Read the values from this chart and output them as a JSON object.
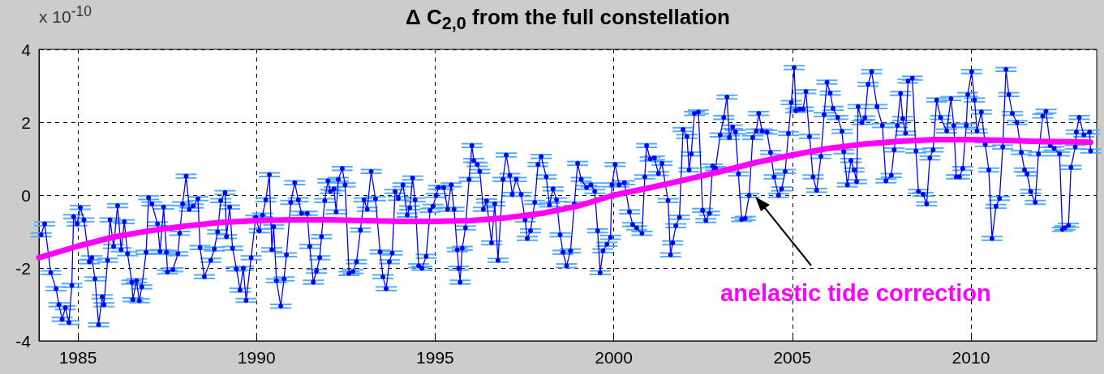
{
  "chart_data": {
    "type": "line",
    "title": "Δ C$_{2,0}$ from the full constellation",
    "annotations": [
      "x 10$^{-10}$"
    ],
    "xlim": [
      1983.91,
      2013.52
    ],
    "xticks": [
      1985,
      1990,
      1995,
      2000,
      2005,
      2010
    ],
    "ylim": [
      -4,
      4
    ],
    "yticks": [
      -4,
      -2,
      0,
      2,
      4
    ],
    "grid": true,
    "legend": false,
    "line_style": "solid",
    "series": [
      {
        "color": "#0000ff",
        "marker": "circle",
        "x": [
          1983.97,
          1984.07,
          1984.24,
          1984.39,
          1984.47,
          1984.56,
          1984.65,
          1984.75,
          1984.83,
          1984.88,
          1984.98,
          1985.07,
          1985.17,
          1985.32,
          1985.39,
          1985.48,
          1985.58,
          1985.68,
          1985.73,
          1985.83,
          1985.9,
          1986,
          1986.11,
          1986.21,
          1986.3,
          1986.39,
          1986.51,
          1986.54,
          1986.64,
          1986.72,
          1986.79,
          1986.91,
          1986.98,
          1987.07,
          1987.23,
          1987.3,
          1987.4,
          1987.48,
          1987.51,
          1987.66,
          1987.8,
          1987.85,
          1987.93,
          1988.03,
          1988.12,
          1988.23,
          1988.36,
          1988.42,
          1988.54,
          1988.72,
          1988.82,
          1988.91,
          1989,
          1989.12,
          1989.16,
          1989.25,
          1989.33,
          1989.44,
          1989.54,
          1989.63,
          1989.71,
          1989.85,
          1989.98,
          1990.08,
          1990.17,
          1990.26,
          1990.36,
          1990.43,
          1990.48,
          1990.56,
          1990.68,
          1990.77,
          1990.84,
          1990.96,
          1991.07,
          1991.17,
          1991.26,
          1991.42,
          1991.49,
          1991.59,
          1991.68,
          1991.77,
          1991.82,
          1991.91,
          1992,
          1992.07,
          1992.17,
          1992.23,
          1992.29,
          1992.4,
          1992.48,
          1992.59,
          1992.7,
          1992.8,
          1992.91,
          1993.01,
          1993.1,
          1993.21,
          1993.33,
          1993.46,
          1993.54,
          1993.63,
          1993.72,
          1993.8,
          1993.88,
          1993.97,
          1994.1,
          1994.22,
          1994.29,
          1994.37,
          1994.44,
          1994.54,
          1994.63,
          1994.75,
          1994.86,
          1994.94,
          1995.03,
          1995.09,
          1995.24,
          1995.35,
          1995.45,
          1995.53,
          1995.62,
          1995.66,
          1995.7,
          1995.76,
          1995.85,
          1995.95,
          1996.03,
          1996.08,
          1996.18,
          1996.25,
          1996.35,
          1996.44,
          1996.58,
          1996.67,
          1996.76,
          1996.9,
          1996.99,
          1997.09,
          1997.16,
          1997.27,
          1997.41,
          1997.52,
          1997.58,
          1997.67,
          1997.79,
          1997.88,
          1997.97,
          1998.11,
          1998.2,
          1998.3,
          1998.4,
          1998.5,
          1998.58,
          1998.68,
          1998.79,
          1998.9,
          1998.99,
          1999.09,
          1999.24,
          1999.36,
          1999.47,
          1999.55,
          1999.62,
          1999.7,
          1999.81,
          1999.91,
          1999.95,
          2000.04,
          2000.15,
          2000.3,
          2000.44,
          2000.53,
          2000.64,
          2000.79,
          2000.87,
          2000.92,
          2001.02,
          2001.14,
          2001.25,
          2001.35,
          2001.52,
          2001.59,
          2001.65,
          2001.74,
          2001.84,
          2001.94,
          2002.05,
          2002.11,
          2002.17,
          2002.26,
          2002.37,
          2002.49,
          2002.58,
          2002.68,
          2002.77,
          2002.85,
          2002.98,
          2003.08,
          2003.17,
          2003.24,
          2003.33,
          2003.41,
          2003.49,
          2003.58,
          2003.68,
          2003.79,
          2003.89,
          2003.99,
          2004.06,
          2004.15,
          2004.29,
          2004.39,
          2004.49,
          2004.61,
          2004.7,
          2004.8,
          2004.89,
          2004.97,
          2005.05,
          2005.1,
          2005.2,
          2005.3,
          2005.38,
          2005.48,
          2005.58,
          2005.68,
          2005.8,
          2005.89,
          2005.97,
          2006.06,
          2006.14,
          2006.27,
          2006.39,
          2006.44,
          2006.54,
          2006.64,
          2006.73,
          2006.8,
          2006.84,
          2006.95,
          2007.03,
          2007.12,
          2007.22,
          2007.37,
          2007.52,
          2007.62,
          2007.77,
          2007.85,
          2007.94,
          2008.03,
          2008.09,
          2008.17,
          2008.24,
          2008.36,
          2008.46,
          2008.53,
          2008.66,
          2008.76,
          2008.85,
          2008.94,
          2009.04,
          2009.15,
          2009.32,
          2009.44,
          2009.52,
          2009.59,
          2009.68,
          2009.77,
          2009.87,
          2009.91,
          2010.02,
          2010.1,
          2010.17,
          2010.29,
          2010.4,
          2010.5,
          2010.59,
          2010.7,
          2010.8,
          2010.89,
          2010.98,
          2011.06,
          2011.16,
          2011.29,
          2011.41,
          2011.5,
          2011.57,
          2011.67,
          2011.8,
          2011.89,
          2012.01,
          2012.1,
          2012.22,
          2012.33,
          2012.48,
          2012.56,
          2012.63,
          2012.73,
          2012.8,
          2012.92,
          2012.95,
          2013.03,
          2013.16,
          2013.32,
          2013.35
        ],
        "values": [
          -1.09,
          -0.79,
          -2.13,
          -2.57,
          -3.01,
          -3.41,
          -3.09,
          -3.5,
          -2.48,
          -0.59,
          -0.79,
          -0.34,
          -0.68,
          -1.83,
          -1.72,
          -2.3,
          -3.56,
          -2.79,
          -3.01,
          -1.79,
          -0.68,
          -1.41,
          -0.29,
          -1.5,
          -0.73,
          -1.61,
          -2.39,
          -2.87,
          -2.35,
          -2.9,
          -2.52,
          -1.57,
          -0.07,
          -0.24,
          -0.79,
          -1.55,
          -0.33,
          -1.57,
          -2.11,
          -2.05,
          -1.61,
          -1.05,
          -0.24,
          0.52,
          -0.39,
          -0.3,
          -0.1,
          -1.44,
          -2.24,
          -1.79,
          -1.48,
          -1.01,
          -0.15,
          0.07,
          -1.14,
          -0.33,
          -1.46,
          -2.03,
          -2.61,
          -2.01,
          -2.89,
          -1.72,
          -0.61,
          -0.98,
          -0.55,
          -0.13,
          0.56,
          -1.5,
          -0.87,
          -2.35,
          -3.05,
          -2.3,
          -1.64,
          -0.2,
          0.34,
          -0.13,
          -0.5,
          -0.5,
          -1.41,
          -2.39,
          -2.09,
          -1.72,
          -1.14,
          -0.15,
          0.39,
          0.1,
          0.17,
          -0.46,
          0.43,
          0.73,
          0.28,
          -2.15,
          -2.1,
          -1.83,
          -0.96,
          -0.13,
          -0.39,
          0.65,
          -0.1,
          -1.56,
          -2.24,
          -2.57,
          -1.83,
          -1.59,
          0.1,
          -0.09,
          0.28,
          -0.55,
          -0.35,
          0.47,
          -0.13,
          -1.94,
          -2.01,
          -1.68,
          -0.42,
          -0.31,
          -0.01,
          0.21,
          0.21,
          -0.39,
          0.28,
          -0.39,
          -1.5,
          -2.01,
          -2.39,
          -1.46,
          -0.9,
          0.43,
          1.36,
          0.95,
          0.84,
          0.65,
          -0.39,
          -0.16,
          -1.31,
          -0.24,
          -1.79,
          0.43,
          1.1,
          0.54,
          0.02,
          0.43,
          0.02,
          -0.68,
          -1.19,
          -0.98,
          -0.2,
          0.84,
          1.06,
          0.5,
          -0.27,
          0.17,
          -0.13,
          -1.09,
          -1.57,
          -1.94,
          -1.53,
          -0.24,
          0.87,
          0.43,
          0.21,
          0.28,
          0.1,
          -0.98,
          -2.13,
          -1.53,
          -1.35,
          -1.16,
          0.28,
          0.84,
          0.28,
          0.34,
          -0.46,
          -0.81,
          -0.9,
          -1.05,
          0.5,
          1.36,
          0.99,
          1.02,
          0.59,
          0.87,
          -0.15,
          -1.64,
          -1.31,
          -0.84,
          -0.61,
          1.8,
          1.61,
          0.69,
          1.13,
          2.24,
          2.28,
          -0.42,
          -0.7,
          -0.5,
          0.8,
          0.73,
          1.65,
          2.13,
          2.69,
          1.58,
          1.87,
          1.73,
          0.58,
          -0.67,
          -0.64,
          -0.01,
          1.58,
          1.76,
          2.24,
          1.76,
          1.73,
          1.17,
          0.5,
          -0.01,
          0.17,
          0.65,
          1.69,
          2.54,
          3.5,
          2.32,
          2.36,
          2.36,
          2.84,
          1.61,
          0.5,
          0.13,
          1.06,
          2.21,
          3.1,
          2.8,
          2.38,
          2.13,
          1.75,
          1.19,
          0.28,
          0.95,
          0.69,
          0.37,
          2.43,
          1.99,
          2.12,
          3.04,
          3.39,
          2.43,
          1.91,
          0.39,
          0.54,
          1.24,
          1.91,
          2.79,
          2.1,
          1.7,
          3.13,
          3.21,
          1.21,
          0.1,
          0.02,
          -0.24,
          1.02,
          1.24,
          2.61,
          2.13,
          1.76,
          2.65,
          1.91,
          0.5,
          0.5,
          0.73,
          1.91,
          2.76,
          3.39,
          2.61,
          1.76,
          2.28,
          1.39,
          0.69,
          -1.19,
          -0.31,
          -0.09,
          1.32,
          3.45,
          2.76,
          2.24,
          1.99,
          1.17,
          0.69,
          0.58,
          0.1,
          -0.2,
          1.13,
          2.17,
          2.3,
          1.36,
          1.28,
          1.13,
          -0.94,
          -0.9,
          -0.83,
          0.76,
          1.32,
          1.73,
          2.13,
          1.65,
          1.73,
          1.21
        ],
        "errors": [
          0.05,
          0.05,
          0.05,
          0.05,
          0.05,
          0.05,
          0.05,
          0.05,
          0.05,
          0.05,
          0.05,
          0.05,
          0.05,
          0.05,
          0.05,
          0.05,
          0.05,
          0.05,
          0.05,
          0.05,
          0.05,
          0.05,
          0.05,
          0.05,
          0.05,
          0.05,
          0.05,
          0.05,
          0.05,
          0.05,
          0.05,
          0.05,
          0.05,
          0.05,
          0.05,
          0.05,
          0.05,
          0.05,
          0.05,
          0.05,
          0.05,
          0.05,
          0.05,
          0.05,
          0.05,
          0.05,
          0.05,
          0.05,
          0.05,
          0.05,
          0.05,
          0.05,
          0.05,
          0.05,
          0.05,
          0.05,
          0.05,
          0.05,
          0.05,
          0.05,
          0.05,
          0.05,
          0.05,
          0.05,
          0.05,
          0.05,
          0.05,
          0.05,
          0.05,
          0.05,
          0.05,
          0.05,
          0.05,
          0.05,
          0.05,
          0.05,
          0.05,
          0.05,
          0.05,
          0.05,
          0.05,
          0.05,
          0.05,
          0.05,
          0.05,
          0.05,
          0.05,
          0.05,
          0.05,
          0.05,
          0.05,
          0.05,
          0.05,
          0.05,
          0.05,
          0.05,
          0.05,
          0.05,
          0.05,
          0.05,
          0.05,
          0.05,
          0.05,
          0.05,
          0.05,
          0.05,
          0.05,
          0.05,
          0.05,
          0.05,
          0.05,
          0.05,
          0.05,
          0.05,
          0.05,
          0.05,
          0.05,
          0.05,
          0.05,
          0.05,
          0.05,
          0.05,
          0.05,
          0.05,
          0.05,
          0.05,
          0.05,
          0.05,
          0.05,
          0.05,
          0.05,
          0.05,
          0.05,
          0.05,
          0.05,
          0.05,
          0.05,
          0.05,
          0.05,
          0.05,
          0.05,
          0.05,
          0.05,
          0.05,
          0.05,
          0.05,
          0.05,
          0.05,
          0.05,
          0.05,
          0.05,
          0.05,
          0.05,
          0.05,
          0.05,
          0.05,
          0.05,
          0.05,
          0.05,
          0.05,
          0.05,
          0.05,
          0.05,
          0.05,
          0.05,
          0.05,
          0.05,
          0.05,
          0.05,
          0.05,
          0.05,
          0.05,
          0.05,
          0.05,
          0.05,
          0.05,
          0.05,
          0.05,
          0.05,
          0.05,
          0.05,
          0.05,
          0.05,
          0.05,
          0.05,
          0.05,
          0.05,
          0.05,
          0.05,
          0.05,
          0.05,
          0.05,
          0.05,
          0.05,
          0.05,
          0.05,
          0.05,
          0.05,
          0.05,
          0.05,
          0.05,
          0.05,
          0.05,
          0.05,
          0.05,
          0.05,
          0.05,
          0.05,
          0.05,
          0.05,
          0.05,
          0.05,
          0.05,
          0.05,
          0.05,
          0.05,
          0.05,
          0.05,
          0.05,
          0.05,
          0.05,
          0.05,
          0.05,
          0.05,
          0.05,
          0.05,
          0.05,
          0.05,
          0.05,
          0.05,
          0.05,
          0.05,
          0.05,
          0.05,
          0.05,
          0.05,
          0.05,
          0.05,
          0.05,
          0.05,
          0.05,
          0.05,
          0.05,
          0.05,
          0.05,
          0.05,
          0.05,
          0.05,
          0.05,
          0.05,
          0.05,
          0.05,
          0.05,
          0.05,
          0.05,
          0.05,
          0.05,
          0.05,
          0.05,
          0.05,
          0.05,
          0.05,
          0.05,
          0.05,
          0.05,
          0.05,
          0.05,
          0.05,
          0.05,
          0.05,
          0.05,
          0.05,
          0.05,
          0.05,
          0.05,
          0.05,
          0.05,
          0.05,
          0.05,
          0.05,
          0.05,
          0.05,
          0.05,
          0.05,
          0.05,
          0.05,
          0.05,
          0.05,
          0.05,
          0.05,
          0.05,
          0.05,
          0.05,
          0.05,
          0.05,
          0.05,
          0.05,
          0.05,
          0.05,
          0.05,
          0.05,
          0.05,
          0.05,
          0.05,
          0.05,
          0.05,
          0.05
        ]
      },
      {
        "name": "anelastic tide correction",
        "color": "#ff00ff",
        "marker": "none",
        "x": [
          1983.91,
          1985,
          1986,
          1987,
          1988,
          1989,
          1990,
          1991,
          1992,
          1993,
          1994,
          1995,
          1996,
          1997,
          1998,
          1999,
          2000,
          2001,
          2002,
          2003,
          2004,
          2005,
          2006,
          2007,
          2008,
          2009,
          2010,
          2011,
          2012,
          2013,
          2013.35
        ],
        "values": [
          -1.72,
          -1.4,
          -1.15,
          -0.98,
          -0.85,
          -0.75,
          -0.7,
          -0.68,
          -0.68,
          -0.7,
          -0.72,
          -0.72,
          -0.7,
          -0.62,
          -0.5,
          -0.3,
          0,
          0.2,
          0.42,
          0.65,
          0.9,
          1.1,
          1.28,
          1.4,
          1.48,
          1.52,
          1.52,
          1.5,
          1.47,
          1.46,
          1.45
        ]
      }
    ]
  }
}
